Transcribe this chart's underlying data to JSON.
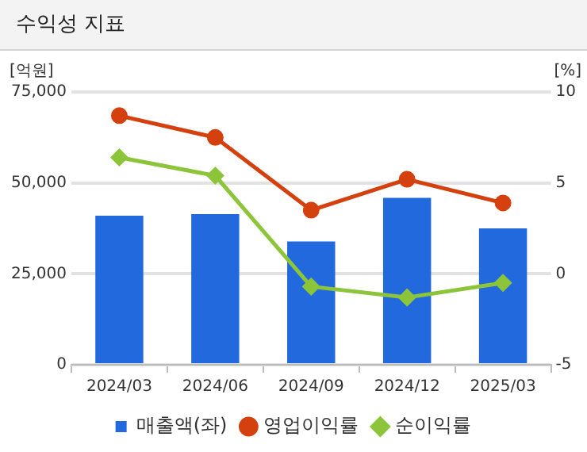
{
  "chart_data": {
    "type": "bar",
    "title": "수익성 지표",
    "ylabel": "[억원]",
    "y2label": "[%]",
    "categories": [
      "2024/03",
      "2024/06",
      "2024/09",
      "2024/12",
      "2025/03"
    ],
    "series": [
      {
        "name": "매출액(좌)",
        "color": "#2369de",
        "values": [
          41000,
          41400,
          33900,
          45900,
          37500
        ]
      },
      {
        "name": "영업이익률",
        "type": "line",
        "axis": "y2",
        "marker": "circle",
        "color": "#d4400e",
        "values": [
          8.7,
          7.5,
          3.5,
          5.2,
          3.9
        ]
      },
      {
        "name": "순이익률",
        "type": "line",
        "axis": "y2",
        "marker": "diamond",
        "color": "#8cc43a",
        "values": [
          6.4,
          5.4,
          -0.7,
          -1.3,
          -0.5
        ]
      }
    ],
    "ylim": [
      0,
      75000
    ],
    "yticks": [
      0,
      {
        "value": 25000,
        "label": "25,000"
      },
      {
        "value": 50000,
        "label": "50,000"
      },
      {
        "value": 75000,
        "label": "75,000"
      }
    ],
    "y2lim": [
      -5,
      10
    ],
    "y2ticks": [
      -5,
      0,
      5,
      10
    ],
    "grid": "y",
    "legend": "bottom"
  }
}
